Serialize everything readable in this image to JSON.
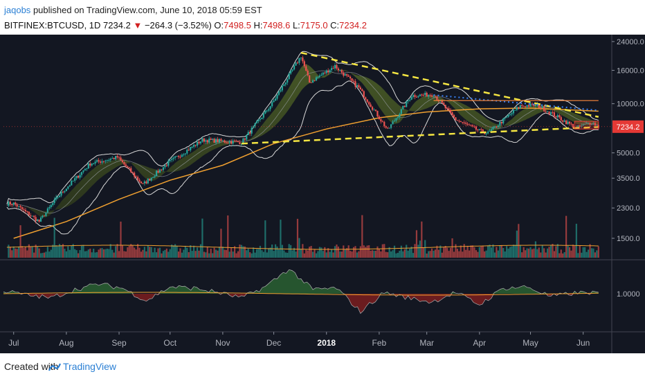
{
  "header": {
    "author": "jaqobs",
    "published_text": "published on TradingView.com, June 10, 2018 05:59 EST",
    "symbol": "BITFINEX:BTCUSD, 1D",
    "last": "7234.2",
    "change": "−264.3 (−3.52%)",
    "o_label": "O:",
    "o_value": "7498.5",
    "h_label": "H:",
    "h_value": "7498.6",
    "l_label": "L:",
    "l_value": "7175.0",
    "c_label": "C:",
    "c_value": "7234.2"
  },
  "footer": {
    "created_with": "Created with",
    "brand": "TradingView"
  },
  "colors": {
    "background": "#131722",
    "up": "#26a69a",
    "down": "#ef5350",
    "bollinger": "#d9d9d9",
    "ma200": "#f0a030",
    "trendline": "#f5e642",
    "dotted": "#3b82f6",
    "label_bg": "#e53935",
    "resistance": "#ff8a3c"
  },
  "chart_data": {
    "type": "candlestick",
    "title": "BITFINEX:BTCUSD, 1D",
    "y_scale": "log",
    "ylim": [
      1000,
      25000
    ],
    "y_ticks": [
      "24000.0",
      "16000.0",
      "10000.0",
      "5000.0",
      "3500.0",
      "2300.0",
      "1500.0"
    ],
    "y_tick_values": [
      24000,
      16000,
      10000,
      5000,
      3500,
      2300,
      1500
    ],
    "x_ticks": [
      "Jul",
      "Aug",
      "Sep",
      "Oct",
      "Nov",
      "Dec",
      "2018",
      "Feb",
      "Mar",
      "Apr",
      "May",
      "Jun"
    ],
    "last_price_label": "7234.2",
    "price_path": [
      [
        "2017-07-01",
        2450
      ],
      [
        "2017-07-16",
        1900
      ],
      [
        "2017-07-27",
        2700
      ],
      [
        "2017-08-15",
        4300
      ],
      [
        "2017-08-31",
        4700
      ],
      [
        "2017-09-15",
        3200
      ],
      [
        "2017-09-30",
        4350
      ],
      [
        "2017-10-20",
        6000
      ],
      [
        "2017-11-12",
        5800
      ],
      [
        "2017-11-30",
        10000
      ],
      [
        "2017-12-17",
        19600
      ],
      [
        "2017-12-22",
        13500
      ],
      [
        "2018-01-06",
        17000
      ],
      [
        "2018-01-20",
        12500
      ],
      [
        "2018-02-06",
        6900
      ],
      [
        "2018-02-20",
        11200
      ],
      [
        "2018-03-05",
        11400
      ],
      [
        "2018-03-18",
        8000
      ],
      [
        "2018-04-01",
        6800
      ],
      [
        "2018-04-06",
        6600
      ],
      [
        "2018-04-25",
        9700
      ],
      [
        "2018-05-05",
        9800
      ],
      [
        "2018-05-28",
        7100
      ],
      [
        "2018-06-06",
        7700
      ],
      [
        "2018-06-10",
        7234.2
      ]
    ],
    "trendlines": [
      {
        "name": "upper-yellow",
        "start": [
          "2017-12-17",
          20500
        ],
        "end": [
          "2018-06-10",
          8300
        ]
      },
      {
        "name": "lower-yellow",
        "start": [
          "2017-11-12",
          5700
        ],
        "end": [
          "2018-06-10",
          7200
        ]
      },
      {
        "name": "dotted-blue",
        "start": [
          "2018-03-05",
          11300
        ],
        "end": [
          "2018-06-10",
          9100
        ]
      },
      {
        "name": "resistance",
        "start": [
          "2018-03-05",
          10450
        ],
        "end": [
          "2018-06-10",
          10450
        ]
      }
    ],
    "ma200_path": [
      [
        "2017-07-01",
        1500
      ],
      [
        "2017-08-01",
        1900
      ],
      [
        "2017-09-01",
        2600
      ],
      [
        "2017-10-01",
        3400
      ],
      [
        "2017-11-01",
        4200
      ],
      [
        "2017-12-01",
        5700
      ],
      [
        "2018-01-01",
        7000
      ],
      [
        "2018-02-01",
        8200
      ],
      [
        "2018-03-01",
        8900
      ],
      [
        "2018-04-01",
        9300
      ],
      [
        "2018-05-01",
        9400
      ],
      [
        "2018-06-10",
        9000
      ]
    ],
    "oscillator": {
      "label": "1.0000",
      "values": [
        0.2,
        -0.1,
        -0.3,
        0.3,
        0.7,
        0.4,
        -0.5,
        0.5,
        0.4,
        0.1,
        -0.3,
        0.5,
        1.8,
        0.3,
        0.4,
        -1.3,
        0.1,
        -0.3,
        -0.6,
        0.1,
        -0.8,
        0.4,
        0.5,
        -0.2,
        0.05,
        0.1
      ]
    },
    "volume_ticks": []
  }
}
